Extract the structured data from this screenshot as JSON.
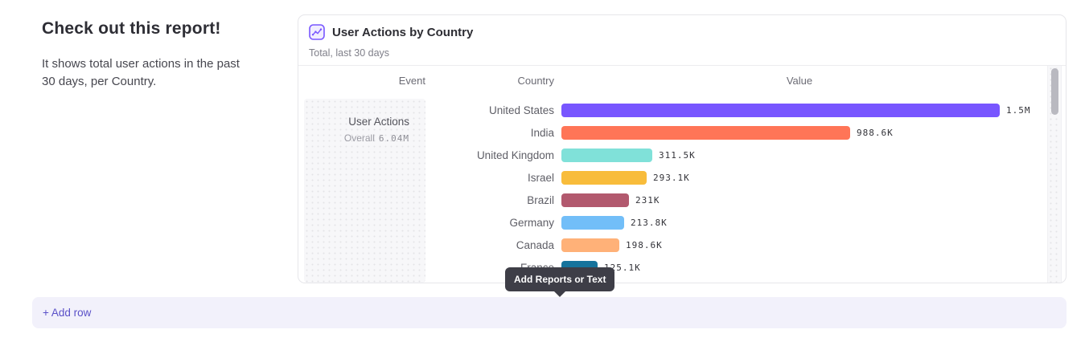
{
  "intro": {
    "title": "Check out this report!",
    "body": "It shows total user actions in the past 30 days, per Country."
  },
  "card": {
    "title": "User Actions by Country",
    "subtitle": "Total, last 30 days",
    "icon": "line-chart-icon",
    "accent_color": "#7856FF"
  },
  "tooltip": "Add Reports or Text",
  "add_row_label": "+ Add row",
  "chart_data": {
    "type": "bar",
    "orientation": "horizontal",
    "title": "User Actions by Country",
    "subtitle": "Total, last 30 days",
    "columns": [
      "Event",
      "Country",
      "Value"
    ],
    "event": {
      "name": "User Actions",
      "overall_label": "Overall",
      "overall_value": "6.04M"
    },
    "categories": [
      "United States",
      "India",
      "United Kingdom",
      "Israel",
      "Brazil",
      "Germany",
      "Canada",
      "France"
    ],
    "values": [
      1500000,
      988600,
      311500,
      293100,
      231000,
      213800,
      198600,
      125100
    ],
    "value_labels": [
      "1.5M",
      "988.6K",
      "311.5K",
      "293.1K",
      "231K",
      "213.8K",
      "198.6K",
      "125.1K"
    ],
    "colors": [
      "#7856FF",
      "#FF7557",
      "#80E1D9",
      "#F8BC3B",
      "#B2596E",
      "#72BEF8",
      "#FFB178",
      "#16739C"
    ],
    "xmax": 1500000,
    "xlabel": "Value",
    "ylabel": "Country",
    "legend": false,
    "grid": false
  }
}
